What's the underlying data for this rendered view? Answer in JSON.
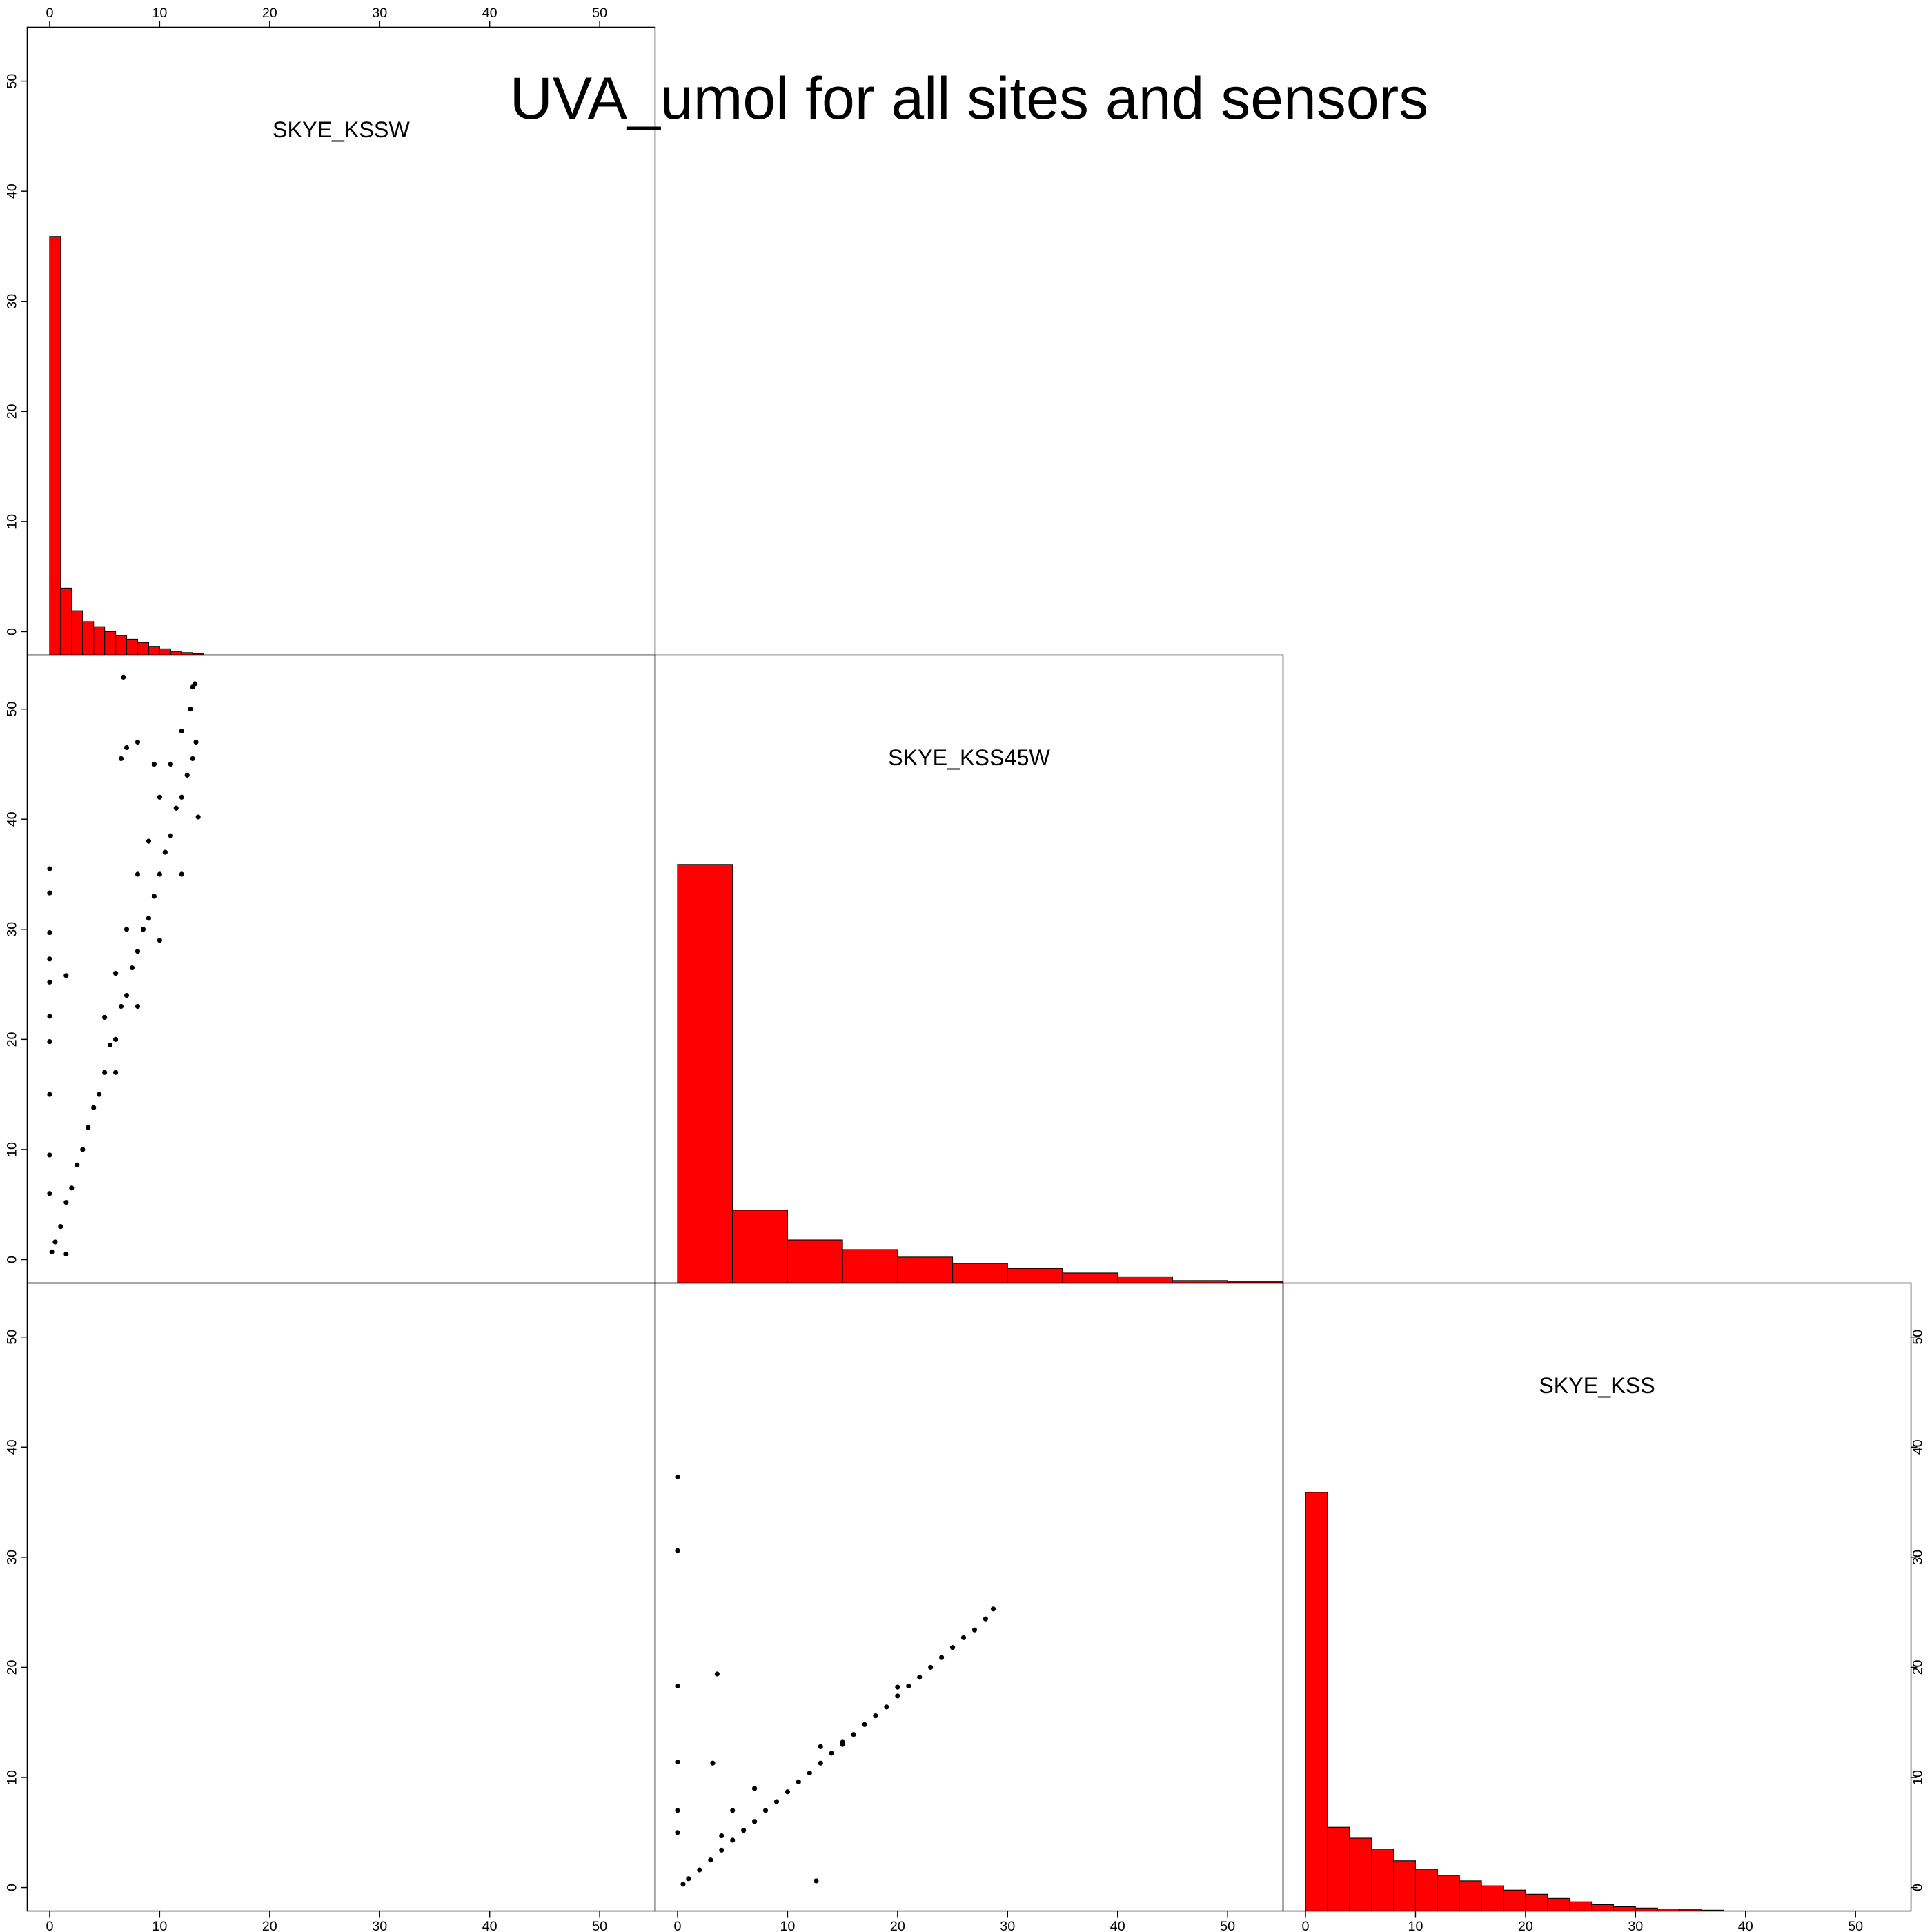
{
  "chart_data": {
    "type": "pairs",
    "title": "UVA_umol for all sites and sensors",
    "xlim": [
      -2.04,
      55.04
    ],
    "ylim": [
      -2.13,
      54.9
    ],
    "xticks": [
      0,
      10,
      20,
      30,
      40,
      50
    ],
    "yticks": [
      0,
      10,
      20,
      30,
      40,
      50
    ],
    "hist_ylim": [
      0,
      1.5
    ],
    "point_color": "#000000",
    "diagonal": [
      {
        "name": "SKYE_KSSW",
        "color": "#ff0000",
        "bins": [
          0,
          1,
          2,
          3,
          4,
          5,
          6,
          7,
          8,
          9,
          10,
          11,
          12,
          13,
          14
        ],
        "values": [
          1,
          0.16,
          0.106,
          0.08,
          0.068,
          0.056,
          0.047,
          0.038,
          0.03,
          0.021,
          0.015,
          0.009,
          0.006,
          0.003
        ]
      },
      {
        "name": "SKYE_KSS45W",
        "color": "#ff0000",
        "bins": [
          0,
          5,
          10,
          15,
          20,
          25,
          30,
          35,
          40,
          45,
          50,
          55
        ],
        "values": [
          1,
          0.174,
          0.103,
          0.08,
          0.062,
          0.047,
          0.035,
          0.024,
          0.015,
          0.006,
          0.003
        ]
      },
      {
        "name": "SKYE_KSS",
        "color": "#ff0000",
        "bins": [
          0,
          2,
          4,
          6,
          8,
          10,
          12,
          14,
          16,
          18,
          20,
          22,
          24,
          26,
          28,
          30,
          32,
          34,
          36,
          38
        ],
        "values": [
          1,
          0.2,
          0.174,
          0.148,
          0.12,
          0.1,
          0.085,
          0.072,
          0.06,
          0.05,
          0.04,
          0.03,
          0.022,
          0.015,
          0.01,
          0.007,
          0.005,
          0.003,
          0.002
        ]
      }
    ],
    "lower": [
      {
        "x": [
          0.2,
          0.5,
          1,
          1.5,
          2,
          2.5,
          3,
          3.5,
          4,
          4.5,
          5,
          5.5,
          6,
          6.5,
          7,
          7.5,
          8,
          8.5,
          9,
          9.5,
          10,
          10.5,
          11,
          11.5,
          12,
          12.5,
          13,
          13.3,
          5,
          6,
          7,
          8,
          9,
          10,
          11,
          12,
          13,
          6,
          8,
          10,
          12,
          13.5,
          0,
          0,
          0,
          0,
          0,
          0,
          0,
          0,
          0,
          0,
          6.7,
          6.5,
          7,
          8,
          9.5,
          1.5,
          1.5,
          13.2,
          12.8
        ],
        "y": [
          0.7,
          1.6,
          3,
          5.2,
          6.5,
          8.6,
          10,
          12,
          13.8,
          15,
          17,
          19.5,
          20,
          23,
          24,
          26.5,
          28,
          30,
          31,
          33,
          35,
          37,
          38.5,
          41,
          42,
          44,
          45.5,
          47,
          22,
          26,
          30,
          35,
          38,
          42,
          45,
          48,
          52,
          17,
          23,
          29,
          35,
          40.2,
          35.5,
          33.3,
          29.7,
          27.3,
          25.2,
          22.1,
          19.8,
          15,
          9.5,
          6,
          52.9,
          45.5,
          46.5,
          47,
          45,
          25.8,
          0.5,
          52.3,
          50
        ]
      },
      {
        "x": [],
        "y": []
      },
      {
        "x": [
          0.5,
          1,
          2,
          3,
          4,
          5,
          6,
          7,
          8,
          9,
          10,
          11,
          12,
          13,
          14,
          15,
          16,
          17,
          18,
          19,
          20,
          21,
          22,
          23,
          24,
          25,
          26,
          27,
          28,
          28.7,
          0,
          0,
          0,
          0,
          0,
          0,
          3.6,
          3.2,
          12.6,
          5,
          7,
          4,
          13,
          20,
          15
        ],
        "y": [
          0.3,
          0.8,
          1.6,
          2.5,
          3.4,
          4.3,
          5.2,
          6,
          7,
          7.8,
          8.7,
          9.6,
          10.4,
          11.3,
          12.2,
          13,
          13.9,
          14.8,
          15.6,
          16.4,
          17.4,
          18.3,
          19.1,
          20,
          20.9,
          21.8,
          22.7,
          23.4,
          24.4,
          25.3,
          37.3,
          30.6,
          18.3,
          11.4,
          7,
          5,
          19.4,
          11.3,
          0.6,
          7,
          9,
          4.7,
          12.8,
          18.2,
          13.2
        ]
      }
    ]
  }
}
